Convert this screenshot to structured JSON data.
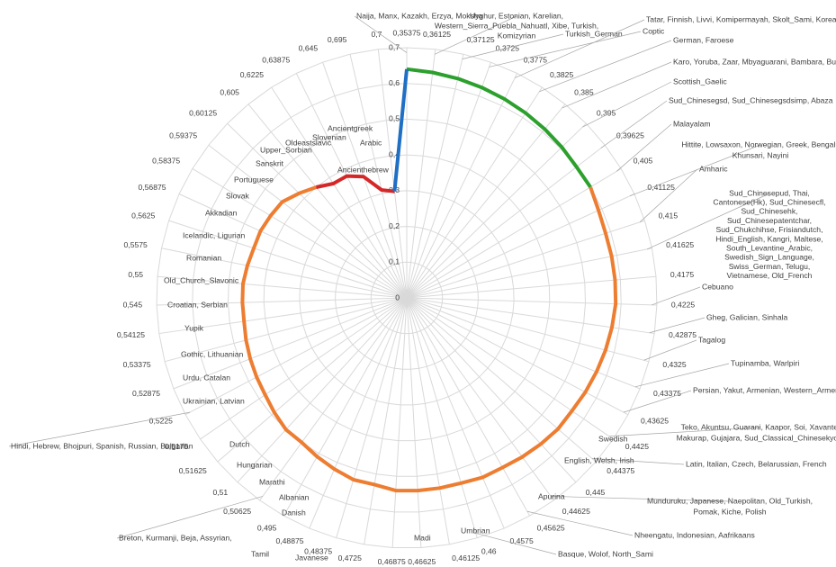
{
  "chart_data": {
    "type": "radar",
    "categories": [
      "0,35375",
      "0,36125",
      "0,37125",
      "0,3725",
      "0,3775",
      "0,3825",
      "0,385",
      "0,395",
      "0,39625",
      "0,405",
      "0,41125",
      "0,415",
      "0,41625",
      "0,4175",
      "0,4225",
      "0,42875",
      "0,4325",
      "0,43375",
      "0,43625",
      "0,4425",
      "0,44375",
      "0,445",
      "0,44625",
      "0,45625",
      "0,4575",
      "0,46",
      "0,46125",
      "0,46625",
      "0,46875",
      "0,4725",
      "0,48375",
      "0,48875",
      "0,495",
      "0,50625",
      "0,51",
      "0,51625",
      "0,5175",
      "0,5225",
      "0,52875",
      "0,53375",
      "0,54125",
      "0,545",
      "0,55",
      "0,5575",
      "0,5625",
      "0,56875",
      "0,58375",
      "0,59375",
      "0,60125",
      "0,605",
      "0,6225",
      "0,63875",
      "0,645",
      "0,695",
      "0,7"
    ],
    "series": [
      {
        "color": "#2ca02c",
        "values": [
          0.64,
          0.635,
          0.63,
          0.625,
          0.62,
          0.615,
          0.61,
          0.605,
          0.6,
          0.6,
          null,
          null,
          null,
          null,
          null,
          null,
          null,
          null,
          null,
          null,
          null,
          null,
          null,
          null,
          null,
          null,
          null,
          null,
          null,
          null,
          null,
          null,
          null,
          null,
          null,
          null,
          null,
          null,
          null,
          null,
          null,
          null,
          null,
          null,
          null,
          null,
          null,
          null,
          null,
          null,
          null,
          null,
          null,
          null,
          null
        ]
      },
      {
        "color": "#ed7d31",
        "values": [
          null,
          null,
          null,
          null,
          null,
          null,
          null,
          null,
          null,
          0.6,
          0.59,
          0.585,
          0.585,
          0.585,
          0.585,
          0.58,
          0.575,
          0.57,
          0.565,
          0.56,
          0.56,
          0.555,
          0.55,
          0.545,
          0.545,
          0.54,
          0.54,
          0.54,
          0.54,
          0.53,
          0.53,
          0.52,
          0.51,
          0.5,
          0.5,
          0.49,
          0.48,
          0.475,
          0.47,
          0.465,
          0.46,
          0.46,
          0.46,
          0.455,
          0.45,
          0.45,
          0.445,
          0.44,
          0.42,
          0.4,
          null,
          null,
          null,
          null,
          null
        ]
      },
      {
        "color": "#d62728",
        "values": [
          null,
          null,
          null,
          null,
          null,
          null,
          null,
          null,
          null,
          null,
          null,
          null,
          null,
          null,
          null,
          null,
          null,
          null,
          null,
          null,
          null,
          null,
          null,
          null,
          null,
          null,
          null,
          null,
          null,
          null,
          null,
          null,
          null,
          null,
          null,
          null,
          null,
          null,
          null,
          null,
          null,
          null,
          null,
          null,
          null,
          null,
          null,
          null,
          null,
          0.4,
          0.38,
          0.38,
          0.36,
          0.31,
          0.3
        ]
      },
      {
        "color": "#1f6fc4",
        "values": [
          0.64,
          null,
          null,
          null,
          null,
          null,
          null,
          null,
          null,
          null,
          null,
          null,
          null,
          null,
          null,
          null,
          null,
          null,
          null,
          null,
          null,
          null,
          null,
          null,
          null,
          null,
          null,
          null,
          null,
          null,
          null,
          null,
          null,
          null,
          null,
          null,
          null,
          null,
          null,
          null,
          null,
          null,
          null,
          null,
          null,
          null,
          null,
          null,
          null,
          null,
          null,
          null,
          null,
          null,
          0.3
        ]
      }
    ],
    "ylim": [
      0,
      0.7
    ],
    "yticks": [
      0,
      {
        "value": 0.1,
        "label": "0,1"
      },
      {
        "value": 0.2,
        "label": "0,2"
      },
      {
        "value": 0.3,
        "label": "0,3"
      },
      {
        "value": 0.4,
        "label": "0,4"
      },
      {
        "value": 0.5,
        "label": "0,5"
      },
      {
        "value": 0.6,
        "label": "0,6"
      },
      {
        "value": 0.7,
        "label": "0,7"
      }
    ],
    "grid": true,
    "annotations": [
      [
        "Naija, Manx, Kazakh, Erzya, Moksha"
      ],
      [
        "Uyghur, Estonian, Karelian,",
        "Western_Sierra_Puebla_Nahuatl, Xibe, Turkish,",
        "Komizyrian"
      ],
      [
        "Turkish_German"
      ],
      [
        "Tatar, Finnish, Livvi, Komipermayah, Skolt_Sami, Korean"
      ],
      [
        "Coptic"
      ],
      [
        "German, Faroese"
      ],
      [
        "Karo, Yoruba, Zaar, Mbyaguarani, Bambara, Buryat"
      ],
      [
        "Scottish_Gaelic"
      ],
      [
        "Sud_Chinesegsd, Sud_Chinesegsdsimp, Abaza"
      ],
      [
        "Malayalam"
      ],
      [
        "Hittite, Lowsaxon, Norwegian, Greek, Bengali,",
        "Khunsari, Nayini"
      ],
      [
        "Amharic"
      ],
      [
        "Sud_Chinesepud, Thai,",
        "Cantonese(Hk), Sud_Chinesecfl,",
        "Sud_Chinesehk,",
        "Sud_Chinesepatentchar,",
        "Sud_Chukchihse, Frisiandutch,",
        "Hindi_English, Kangri, Maltese,",
        "South_Levantine_Arabic,",
        "Swedish_Sign_Language,",
        "Swiss_German, Telugu,",
        "Vietnamese, Old_French"
      ],
      [
        "Cebuano"
      ],
      [
        "Gheg, Galician, Sinhala"
      ],
      [
        "Tagalog"
      ],
      [
        "Tupinamba, Warlpiri"
      ],
      [
        "Persian, Yakut, Armenian, Western_Armenian"
      ],
      [
        "Teko,  Akuntsu, Guarani, Kaapor, Soi, Xavante,",
        "Makurap, Gujajara, Sud_Classical_Chinesekyoto"
      ],
      [
        "Latin, Italian, Czech, Belarussian, French"
      ],
      [
        "Munduruku, Japanese, Naepolitan, Old_Turkish,",
        "Pomak, Kiche, Polish"
      ],
      [
        "Nheengatu, Indonesian, Aafrikaans"
      ],
      [
        "Basque, Wolof, North_Sami"
      ],
      [
        "Breton, Kurmanji, Beja, Assyrian,"
      ],
      [
        "Hindi, Hebrew, Bhojpuri, Spanish, Russian, Bulgarian"
      ],
      [
        "Swedish"
      ],
      [
        "English, Welsh, Irish"
      ],
      [
        "Apurina"
      ],
      [
        "Umbrian"
      ],
      [
        "Madi"
      ],
      [
        "Javanese"
      ],
      [
        "Tamil"
      ],
      [
        "Danish"
      ],
      [
        "Albanian"
      ],
      [
        "Marathi"
      ],
      [
        "Hungarian"
      ],
      [
        "Dutch"
      ],
      [
        "Ukrainian, Latvian"
      ],
      [
        "Urdu, Catalan"
      ],
      [
        "Gothic, Lithuanian"
      ],
      [
        "Yupik"
      ],
      [
        "Croatian, Serbian"
      ],
      [
        "Old_Church_Slavonic"
      ],
      [
        "Romanian"
      ],
      [
        "Icelandic, Ligurian"
      ],
      [
        "Akkadian"
      ],
      [
        "Slovak"
      ],
      [
        "Portuguese"
      ],
      [
        "Sanskrit"
      ],
      [
        "Upper_Sorbian"
      ],
      [
        "Oldeastslavic"
      ],
      [
        "Slovenian"
      ],
      [
        "Ancientgreek"
      ],
      [
        "Arabic"
      ],
      [
        "Ancienthebrew"
      ]
    ]
  }
}
